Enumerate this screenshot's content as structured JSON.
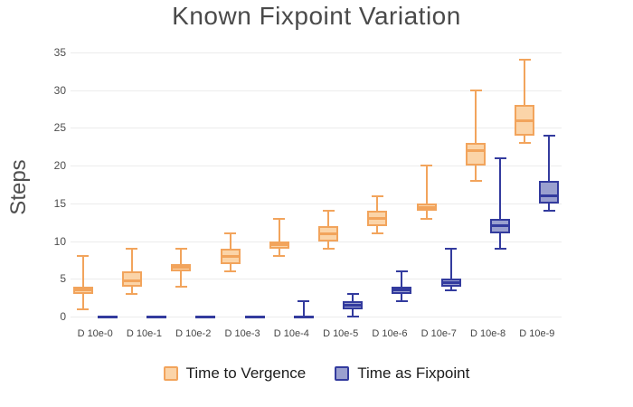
{
  "title": "Known Fixpoint Variation",
  "y_axis_title": "Steps",
  "chart_data": {
    "type": "box",
    "title": "Known Fixpoint Variation",
    "xlabel": "",
    "ylabel": "Steps",
    "categories": [
      "D 10e-0",
      "D 10e-1",
      "D 10e-2",
      "D 10e-3",
      "D 10e-4",
      "D 10e-5",
      "D 10e-6",
      "D 10e-7",
      "D 10e-8",
      "D 10e-9"
    ],
    "ylim": [
      0,
      35
    ],
    "ytick_step": 5,
    "grid": true,
    "legend_position": "bottom-center",
    "series": [
      {
        "name": "Time to Vergence",
        "fill_color": "#fbd4a8",
        "line_color": "#f2a45c",
        "boxes": [
          {
            "min": 1,
            "q1": 3,
            "median": 3.5,
            "q3": 4,
            "max": 8
          },
          {
            "min": 3,
            "q1": 4,
            "median": 4.75,
            "q3": 6,
            "max": 9
          },
          {
            "min": 4,
            "q1": 6,
            "median": 6.5,
            "q3": 7,
            "max": 9
          },
          {
            "min": 6,
            "q1": 7,
            "median": 8,
            "q3": 9,
            "max": 11
          },
          {
            "min": 8,
            "q1": 9,
            "median": 9.5,
            "q3": 10,
            "max": 13
          },
          {
            "min": 9,
            "q1": 10,
            "median": 11,
            "q3": 12,
            "max": 14
          },
          {
            "min": 11,
            "q1": 12,
            "median": 13,
            "q3": 14,
            "max": 16
          },
          {
            "min": 13,
            "q1": 14,
            "median": 14.5,
            "q3": 15,
            "max": 20
          },
          {
            "min": 18,
            "q1": 20,
            "median": 22,
            "q3": 23,
            "max": 30
          },
          {
            "min": 23,
            "q1": 24,
            "median": 26,
            "q3": 28,
            "max": 34
          }
        ]
      },
      {
        "name": "Time as Fixpoint",
        "fill_color": "#9aa0cf",
        "line_color": "#333b9e",
        "boxes": [
          {
            "min": 0,
            "q1": 0,
            "median": 0,
            "q3": 0,
            "max": 0
          },
          {
            "min": 0,
            "q1": 0,
            "median": 0,
            "q3": 0,
            "max": 0
          },
          {
            "min": 0,
            "q1": 0,
            "median": 0,
            "q3": 0,
            "max": 0
          },
          {
            "min": 0,
            "q1": 0,
            "median": 0,
            "q3": 0,
            "max": 0
          },
          {
            "min": 0,
            "q1": 0,
            "median": 0,
            "q3": 0,
            "max": 2
          },
          {
            "min": 0,
            "q1": 1,
            "median": 1.5,
            "q3": 2,
            "max": 3
          },
          {
            "min": 2,
            "q1": 3,
            "median": 3.5,
            "q3": 4,
            "max": 6
          },
          {
            "min": 3.5,
            "q1": 4,
            "median": 4.5,
            "q3": 5,
            "max": 9
          },
          {
            "min": 9,
            "q1": 11,
            "median": 12,
            "q3": 13,
            "max": 21
          },
          {
            "min": 14,
            "q1": 15,
            "median": 16,
            "q3": 18,
            "max": 24
          }
        ]
      }
    ]
  }
}
